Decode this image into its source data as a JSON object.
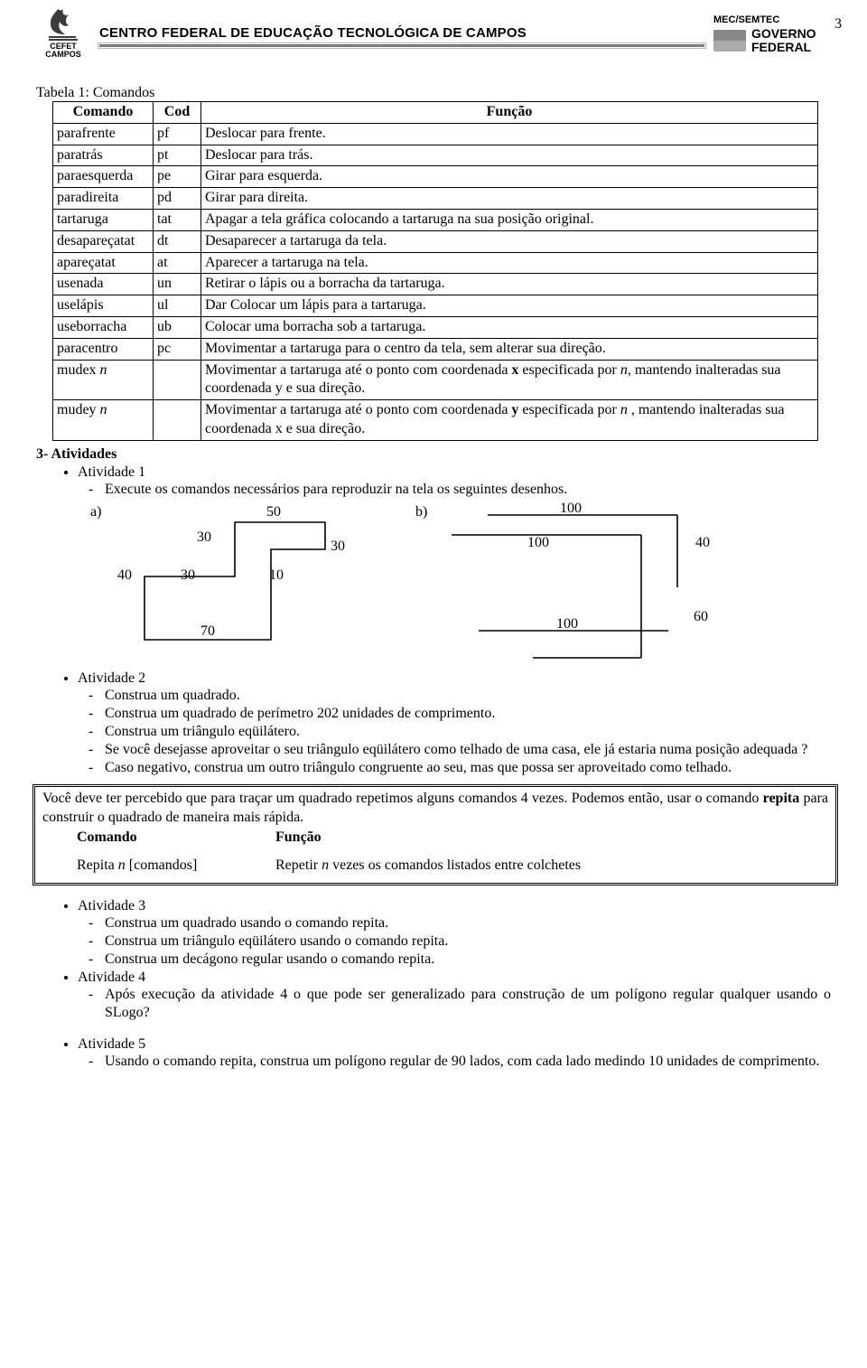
{
  "page_number": "3",
  "header": {
    "institution_name": "CENTRO FEDERAL DE EDUCAÇÃO TECNOLÓGICA DE CAMPOS",
    "logo_top": "CEFET",
    "logo_bottom": "CAMPOS",
    "ministry": "MEC/SEMTEC",
    "gov_line1": "GOVERNO",
    "gov_line2": "FEDERAL"
  },
  "table": {
    "caption": "Tabela 1: Comandos",
    "headers": [
      "Comando",
      "Cod",
      "Função"
    ],
    "rows": [
      [
        "parafrente",
        "pf",
        "Deslocar para frente."
      ],
      [
        "paratrás",
        "pt",
        "Deslocar para trás."
      ],
      [
        "paraesquerda",
        "pe",
        "Girar para esquerda."
      ],
      [
        "paradireita",
        "pd",
        "Girar para direita."
      ],
      [
        "tartaruga",
        "tat",
        "Apagar a tela gráfica colocando a tartaruga na sua posição original."
      ],
      [
        "desapareçatat",
        "dt",
        "Desaparecer a tartaruga da tela."
      ],
      [
        "apareçatat",
        "at",
        "Aparecer a tartaruga na tela."
      ],
      [
        "usenada",
        "un",
        "Retirar o lápis ou a borracha da tartaruga."
      ],
      [
        "uselápis",
        "ul",
        "Dar Colocar um lápis para a tartaruga."
      ],
      [
        "useborracha",
        "ub",
        "Colocar uma borracha sob a tartaruga."
      ],
      [
        "paracentro",
        "pc",
        "Movimentar a tartaruga para o centro da tela, sem alterar sua direção."
      ]
    ],
    "mudex_cmd": "mudex  ",
    "mudex_n": "n",
    "mudex_fn_p1": "Movimentar a tartaruga até o ponto com coordenada ",
    "mudex_fn_x": "x",
    "mudex_fn_p2": " especificada por ",
    "mudex_fn_n": "n",
    "mudex_fn_p3": ", mantendo inalteradas sua coordenada y e sua direção.",
    "mudey_cmd": "mudey ",
    "mudey_n": "n",
    "mudey_fn_p1": "Movimentar a tartaruga até o ponto com coordenada ",
    "mudey_fn_y": "y",
    "mudey_fn_p2": " especificada por ",
    "mudey_fn_n": "n",
    "mudey_fn_p3": " , mantendo inalteradas sua coordenada x e sua direção."
  },
  "sec_atividades": "3- Atividades",
  "atv1": {
    "title": "Atividade 1",
    "item": "Execute os comandos necessários para reproduzir na tela os seguintes desenhos."
  },
  "diagA": {
    "label": "a)",
    "v50": "50",
    "v30a": "30",
    "v30b": "30",
    "v40": "40",
    "v30c": "30",
    "v10": "10",
    "v70": "70"
  },
  "diagB": {
    "label": "b)",
    "v100a": "100",
    "v100b": "100",
    "v40": "40",
    "v60": "60",
    "v100c": "100"
  },
  "atv2": {
    "title": "Atividade 2",
    "i1": "Construa um quadrado.",
    "i2": "Construa um quadrado de perímetro 202 unidades de comprimento.",
    "i3": "Construa um triângulo eqüilátero.",
    "i4": "Se você desejasse aproveitar o seu triângulo eqüilátero  como telhado de uma casa, ele já estaria numa posição adequada ?",
    "i5": "Caso negativo, construa um outro triângulo congruente ao seu, mas que possa ser aproveitado como telhado."
  },
  "infobox": {
    "p1a": "Você deve ter percebido que para traçar um quadrado repetimos alguns comandos 4 vezes. Podemos então, usar o comando ",
    "p1b": "repita",
    "p1c": " para construir o quadrado de maneira mais rápida.",
    "h1": "Comando",
    "h2": "Função",
    "c1a": "Repita ",
    "c1n": "n",
    "c1b": " [comandos]",
    "c2a": "Repetir ",
    "c2n": "n",
    "c2b": " vezes  os comandos listados entre colchetes"
  },
  "atv3": {
    "title": "Atividade 3",
    "i1": "Construa um quadrado usando o comando repita.",
    "i2": "Construa um triângulo eqüilátero usando o comando repita.",
    "i3": "Construa um decágono regular usando o comando repita."
  },
  "atv4": {
    "title": "Atividade 4",
    "i1": "Após execução da atividade 4 o que pode ser generalizado para construção de um polígono regular qualquer usando o SLogo?"
  },
  "atv5": {
    "title": "Atividade 5",
    "i1": "Usando o comando repita, construa um polígono regular de 90 lados, com cada lado medindo 10 unidades de comprimento."
  },
  "style": {
    "header_bar_color": "#7a7a7a",
    "logo_fill": "#3b3b3b",
    "border_color": "#000000"
  }
}
